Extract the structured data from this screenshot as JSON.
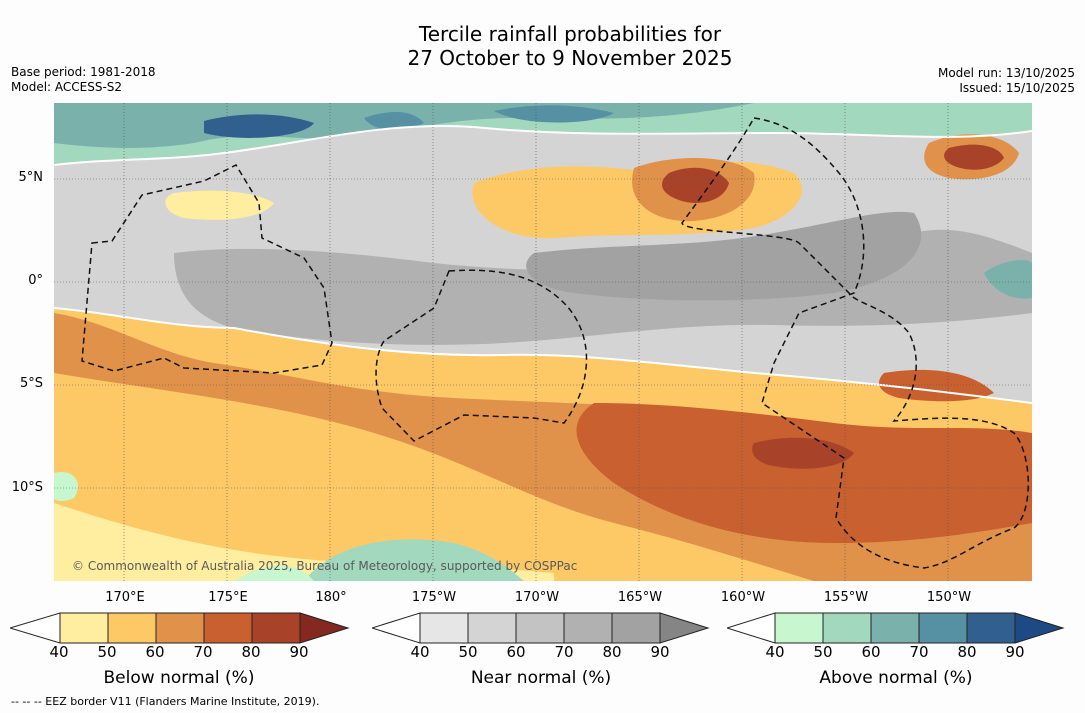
{
  "header": {
    "title_line1": "Tercile rainfall probabilities for",
    "title_line2": "27 October to 9 November 2025",
    "base_period": "Base period: 1981-2018",
    "model": "Model: ACCESS-S2",
    "model_run": "Model run: 13/10/2025",
    "issued": "Issued: 15/10/2025"
  },
  "map": {
    "copyright": "© Commonwealth of Australia 2025, Bureau of Meteorology, supported by COSPPac",
    "lat_labels": [
      "5°N",
      "0°",
      "5°S",
      "10°S"
    ],
    "lon_labels": [
      "170°E",
      "175°E",
      "180°",
      "175°W",
      "170°W",
      "165°W",
      "160°W",
      "155°W",
      "150°W"
    ]
  },
  "colorbars": [
    {
      "label": "Below normal (%)",
      "ticks": [
        "40",
        "50",
        "60",
        "70",
        "80",
        "90"
      ],
      "colors": [
        "#ffeda0",
        "#fdc966",
        "#e0924a",
        "#c9602f",
        "#a8432a",
        "#85281f"
      ]
    },
    {
      "label": "Near normal (%)",
      "ticks": [
        "40",
        "50",
        "60",
        "70",
        "80",
        "90"
      ],
      "colors": [
        "#e6e6e6",
        "#d4d4d4",
        "#c3c3c3",
        "#b1b1b1",
        "#a2a2a2",
        "#858585"
      ]
    },
    {
      "label": "Above normal (%)",
      "ticks": [
        "40",
        "50",
        "60",
        "70",
        "80",
        "90"
      ],
      "colors": [
        "#c7f6cf",
        "#a2d8bd",
        "#7ab2ab",
        "#5590a3",
        "#31608f",
        "#1d4a85"
      ]
    }
  ],
  "footnote": "--  --  -- EEZ border V11 (Flanders Marine Institute, 2019)."
}
